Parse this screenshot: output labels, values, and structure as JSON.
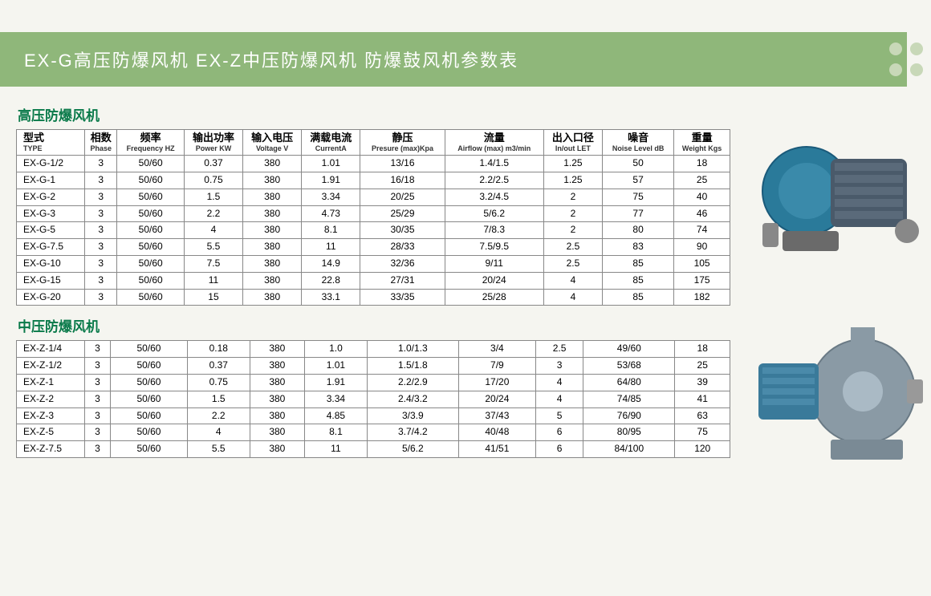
{
  "header": {
    "title": "EX-G高压防爆风机  EX-Z中压防爆风机  防爆鼓风机参数表"
  },
  "section1": {
    "title": "高压防爆风机"
  },
  "section2": {
    "title": "中压防爆风机"
  },
  "columns": [
    {
      "cn": "型式",
      "en": "TYPE"
    },
    {
      "cn": "相数",
      "en": "Phase"
    },
    {
      "cn": "频率",
      "en": "Frequency HZ"
    },
    {
      "cn": "输出功率",
      "en": "Power KW"
    },
    {
      "cn": "输入电压",
      "en": "Voltage V"
    },
    {
      "cn": "满载电流",
      "en": "CurrentA"
    },
    {
      "cn": "静压",
      "en": "Presure (max)Kpa"
    },
    {
      "cn": "流量",
      "en": "Airflow (max) m3/min"
    },
    {
      "cn": "出入口径",
      "en": "In/out LET"
    },
    {
      "cn": "噪音",
      "en": "Noise Level dB"
    },
    {
      "cn": "重量",
      "en": "Weight Kgs"
    }
  ],
  "table1_rows": [
    [
      "EX-G-1/2",
      "3",
      "50/60",
      "0.37",
      "380",
      "1.01",
      "13/16",
      "1.4/1.5",
      "1.25",
      "50",
      "18"
    ],
    [
      "EX-G-1",
      "3",
      "50/60",
      "0.75",
      "380",
      "1.91",
      "16/18",
      "2.2/2.5",
      "1.25",
      "57",
      "25"
    ],
    [
      "EX-G-2",
      "3",
      "50/60",
      "1.5",
      "380",
      "3.34",
      "20/25",
      "3.2/4.5",
      "2",
      "75",
      "40"
    ],
    [
      "EX-G-3",
      "3",
      "50/60",
      "2.2",
      "380",
      "4.73",
      "25/29",
      "5/6.2",
      "2",
      "77",
      "46"
    ],
    [
      "EX-G-5",
      "3",
      "50/60",
      "4",
      "380",
      "8.1",
      "30/35",
      "7/8.3",
      "2",
      "80",
      "74"
    ],
    [
      "EX-G-7.5",
      "3",
      "50/60",
      "5.5",
      "380",
      "11",
      "28/33",
      "7.5/9.5",
      "2.5",
      "83",
      "90"
    ],
    [
      "EX-G-10",
      "3",
      "50/60",
      "7.5",
      "380",
      "14.9",
      "32/36",
      "9/11",
      "2.5",
      "85",
      "105"
    ],
    [
      "EX-G-15",
      "3",
      "50/60",
      "11",
      "380",
      "22.8",
      "27/31",
      "20/24",
      "4",
      "85",
      "175"
    ],
    [
      "EX-G-20",
      "3",
      "50/60",
      "15",
      "380",
      "33.1",
      "33/35",
      "25/28",
      "4",
      "85",
      "182"
    ]
  ],
  "table2_rows": [
    [
      "EX-Z-1/4",
      "3",
      "50/60",
      "0.18",
      "380",
      "1.0",
      "1.0/1.3",
      "3/4",
      "2.5",
      "49/60",
      "18"
    ],
    [
      "EX-Z-1/2",
      "3",
      "50/60",
      "0.37",
      "380",
      "1.01",
      "1.5/1.8",
      "7/9",
      "3",
      "53/68",
      "25"
    ],
    [
      "EX-Z-1",
      "3",
      "50/60",
      "0.75",
      "380",
      "1.91",
      "2.2/2.9",
      "17/20",
      "4",
      "64/80",
      "39"
    ],
    [
      "EX-Z-2",
      "3",
      "50/60",
      "1.5",
      "380",
      "3.34",
      "2.4/3.2",
      "20/24",
      "4",
      "74/85",
      "41"
    ],
    [
      "EX-Z-3",
      "3",
      "50/60",
      "2.2",
      "380",
      "4.85",
      "3/3.9",
      "37/43",
      "5",
      "76/90",
      "63"
    ],
    [
      "EX-Z-5",
      "3",
      "50/60",
      "4",
      "380",
      "8.1",
      "3.7/4.2",
      "40/48",
      "6",
      "80/95",
      "75"
    ],
    [
      "EX-Z-7.5",
      "3",
      "50/60",
      "5.5",
      "380",
      "11",
      "5/6.2",
      "41/51",
      "6",
      "84/100",
      "120"
    ]
  ],
  "colors": {
    "header_bg": "#8fb77a",
    "section_title": "#0a7a4a",
    "blower1_body": "#2a7a9a",
    "blower1_accent": "#4a5a6a",
    "blower2_body": "#7a8a95",
    "blower2_accent": "#3a7a9a"
  }
}
